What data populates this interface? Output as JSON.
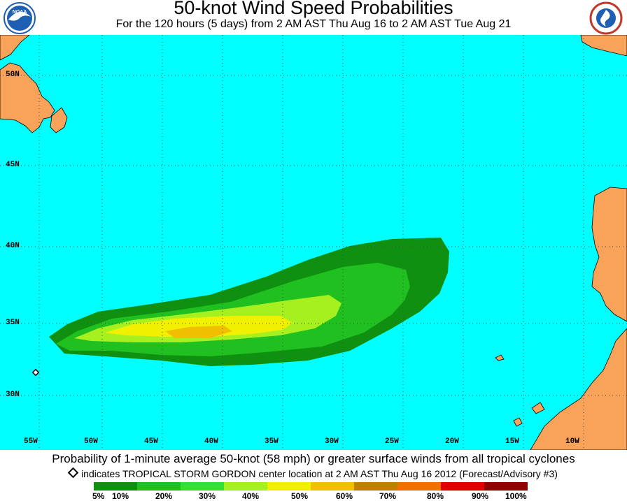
{
  "header": {
    "title": "50-knot Wind Speed Probabilities",
    "subtitle": "For the 120 hours (5 days) from 2 AM AST Thu Aug 16 to 2 AM AST Tue Aug 21"
  },
  "logos": {
    "left": {
      "text": "NOAA",
      "color": "#1f5fb3"
    },
    "right": {
      "text": "NATIONAL WEATHER SERVICE",
      "color": "#c0392b"
    }
  },
  "map": {
    "colors": {
      "ocean": "#00ffff",
      "land": "#f8a25a",
      "grid": "#4a4a4a"
    },
    "lat_labels": [
      "50N",
      "45N",
      "40N",
      "35N",
      "30N"
    ],
    "lon_labels": [
      "55W",
      "50W",
      "45W",
      "40W",
      "35W",
      "30W",
      "25W",
      "20W",
      "15W",
      "10W"
    ]
  },
  "caption": "Probability of 1-minute average 50-knot (58 mph) or greater surface winds from all tropical cyclones",
  "note": "indicates TROPICAL STORM GORDON center location at 2 AM AST Thu Aug 16 2012 (Forecast/Advisory #3)",
  "legend": {
    "labels": [
      "5%",
      "10%",
      "20%",
      "30%",
      "40%",
      "50%",
      "60%",
      "70%",
      "80%",
      "90%",
      "100%"
    ],
    "colors": [
      "#109010",
      "#20c020",
      "#33e033",
      "#a6f020",
      "#f0f000",
      "#f0c000",
      "#c08000",
      "#f07000",
      "#e00000",
      "#900000",
      "#800080"
    ]
  }
}
